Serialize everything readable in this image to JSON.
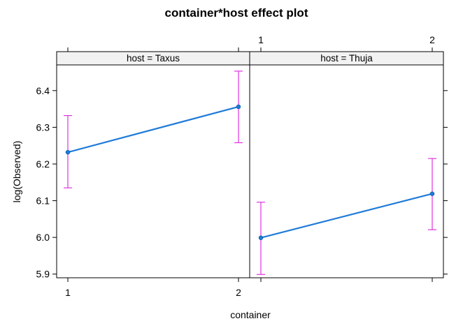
{
  "chart_data": {
    "type": "line",
    "title": "container*host effect plot",
    "xlabel": "container",
    "ylabel": "log(Observed)",
    "categories": [
      "1",
      "2"
    ],
    "ylim": [
      5.89,
      6.47
    ],
    "yticks": [
      "5.9",
      "6.0",
      "6.1",
      "6.2",
      "6.3",
      "6.4"
    ],
    "grid": false,
    "line_color": "#1f7bd8",
    "error_color": "#e033e0",
    "strip_color": "#f2f2f2",
    "panels": [
      {
        "strip_label": "host = Taxus",
        "values": [
          6.232,
          6.356
        ],
        "lower": [
          6.135,
          6.258
        ],
        "upper": [
          6.332,
          6.453
        ]
      },
      {
        "strip_label": "host = Thuja",
        "values": [
          5.999,
          6.119
        ],
        "lower": [
          5.899,
          6.021
        ],
        "upper": [
          6.096,
          6.215
        ]
      }
    ]
  }
}
